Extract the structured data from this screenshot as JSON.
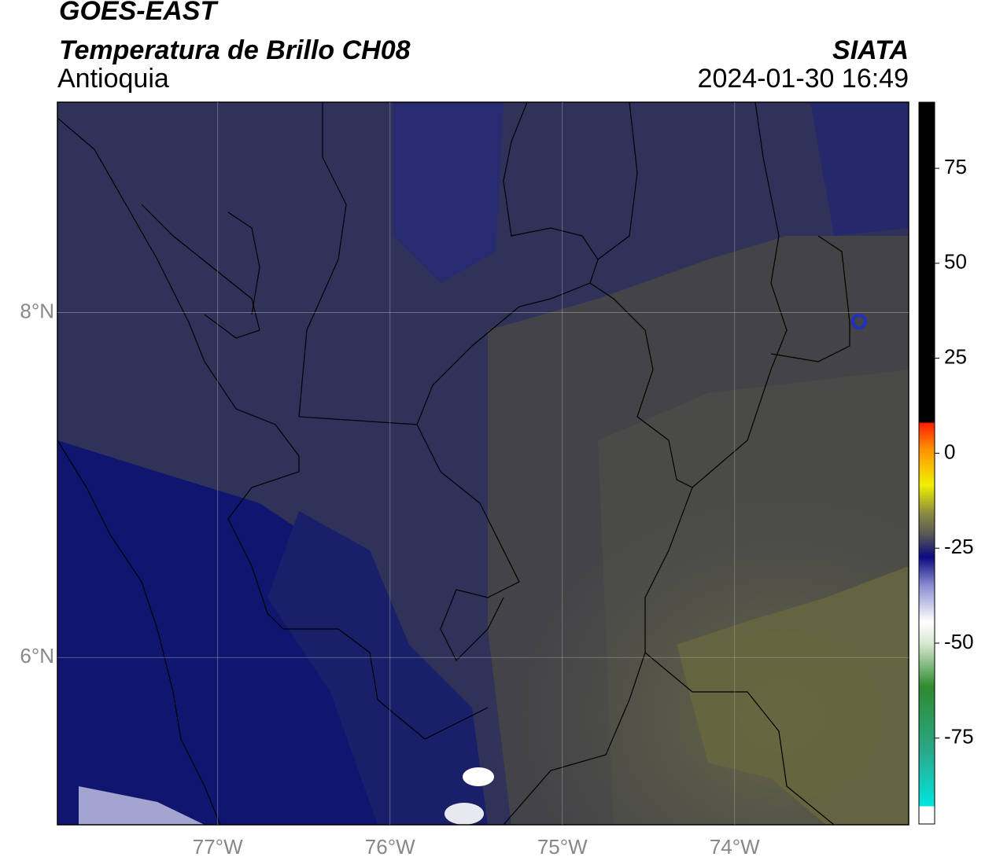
{
  "header": {
    "title": "GOES-EAST",
    "subtitle": "Temperatura de Brillo CH08",
    "region": "Antioquia",
    "source": "SIATA",
    "datetime": "2024-01-30 16:49"
  },
  "map": {
    "lonlim": [
      -77.93,
      -72.99
    ],
    "latlim": [
      5.03,
      9.22
    ],
    "lon_ticks": [
      {
        "value": -77,
        "label": "77°W"
      },
      {
        "value": -76,
        "label": "76°W"
      },
      {
        "value": -75,
        "label": "75°W"
      },
      {
        "value": -74,
        "label": "74°W"
      }
    ],
    "lat_ticks": [
      {
        "value": 8,
        "label": "8°N"
      },
      {
        "value": 6,
        "label": "6°N"
      }
    ]
  },
  "colorbar": {
    "lim": [
      -97.6,
      92.4
    ],
    "ticks": [
      75,
      50,
      25,
      0,
      -25,
      -50,
      -75
    ]
  }
}
